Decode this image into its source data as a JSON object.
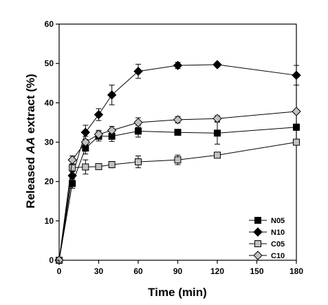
{
  "chart_data": {
    "type": "line",
    "title": "",
    "xlabel": "Time (min)",
    "ylabel_parts": [
      "Released ",
      "AA",
      " extract (%)"
    ],
    "xlim": [
      0,
      180
    ],
    "ylim": [
      0,
      60
    ],
    "xticks": [
      0,
      30,
      60,
      90,
      120,
      150,
      180
    ],
    "yticks": [
      0,
      10,
      20,
      30,
      40,
      50,
      60
    ],
    "grid": false,
    "legend_position": "bottom-right",
    "x": [
      0,
      10,
      20,
      30,
      40,
      60,
      90,
      120,
      180
    ],
    "series": [
      {
        "name": "N05",
        "marker": "square",
        "color": "#000000",
        "values": [
          0,
          19.5,
          28.5,
          31.5,
          31.5,
          32.8,
          32.5,
          32.3,
          33.8
        ],
        "errors": [
          0,
          1.2,
          1.5,
          1.2,
          1.3,
          1.5,
          0.5,
          2.8,
          0.8
        ]
      },
      {
        "name": "N10",
        "marker": "diamond",
        "color": "#000000",
        "values": [
          0,
          21.5,
          32.5,
          37,
          42,
          48,
          49.5,
          49.7,
          47
        ],
        "errors": [
          0,
          1.5,
          1.8,
          1.5,
          2.5,
          1.8,
          0.8,
          0.5,
          2.5
        ]
      },
      {
        "name": "C05",
        "marker": "square",
        "color": "#c0c0c0",
        "values": [
          0,
          23.5,
          23.7,
          23.8,
          24.3,
          25,
          25.5,
          26.7,
          30
        ],
        "errors": [
          0,
          1.0,
          1.8,
          0.5,
          0.8,
          1.5,
          1.2,
          0.6,
          0.5
        ]
      },
      {
        "name": "C10",
        "marker": "diamond",
        "color": "#c0c0c0",
        "values": [
          0,
          25.5,
          30,
          32,
          33,
          35,
          35.7,
          36,
          37.8
        ],
        "errors": [
          0,
          1.0,
          1.5,
          1.0,
          1.0,
          1.2,
          0.8,
          0.7,
          0.5
        ]
      }
    ]
  }
}
